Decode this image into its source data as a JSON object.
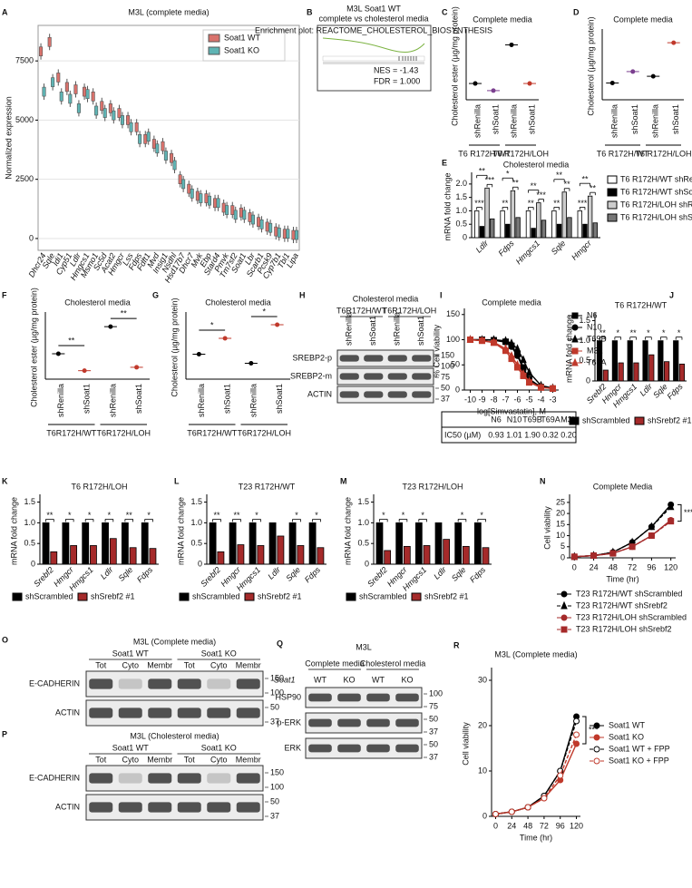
{
  "chart_data": [
    {
      "type": "box",
      "letter": "A",
      "title": "M3L (complete media)",
      "ylabel": "Normalized expression",
      "categories": [
        "Dhcr24",
        "Sqle",
        "Idi1",
        "Cyp51",
        "Ldlr",
        "Hmgcs1",
        "Msmo1",
        "Sc5d",
        "Acat2",
        "Hmgcr",
        "Lss",
        "Fdps",
        "Fdft1",
        "Mvd",
        "Insig1",
        "Nsdhl",
        "Hsd17b7",
        "Dhcr7",
        "Mvk",
        "Ebp",
        "Stard4",
        "Pmvk",
        "Tm7sf2",
        "Soat1",
        "Lbr",
        "Scarb1",
        "Pcsk9",
        "Cyp7b1",
        "Tbl1",
        "Lipa"
      ],
      "ylim": [
        -500,
        9000
      ],
      "yticks": [
        0,
        2500,
        5000,
        7500
      ],
      "grid": true,
      "legend": "top-right",
      "series": [
        {
          "name": "Soat1 WT",
          "color": "#d9726c",
          "values": [
            7900,
            8300,
            6800,
            6400,
            6300,
            6200,
            6000,
            5600,
            5500,
            5300,
            5000,
            4700,
            4200,
            4000,
            3900,
            3400,
            2500,
            2100,
            1800,
            1700,
            1500,
            1300,
            1200,
            1100,
            900,
            700,
            500,
            300,
            200,
            150
          ]
        },
        {
          "name": "Soat1 KO",
          "color": "#5fb4b4",
          "values": [
            6200,
            6600,
            6000,
            5900,
            5500,
            6100,
            5400,
            5300,
            5200,
            5000,
            4700,
            4200,
            4300,
            3800,
            3500,
            3100,
            2300,
            1900,
            1700,
            1600,
            1500,
            1200,
            1000,
            1000,
            800,
            600,
            450,
            250,
            200,
            150
          ]
        }
      ]
    },
    {
      "type": "dot",
      "letter": "C",
      "title": "Complete media",
      "ylabel": "Cholesterol ester (µg/mg protein)",
      "categories": [
        "shRenilla",
        "shSoat1",
        "shRenilla",
        "shSoat1"
      ],
      "values": [
        0.8,
        0.45,
        2.7,
        0.8
      ],
      "colors": [
        "#000000",
        "#7b3f8f",
        "#000000",
        "#c0392b"
      ],
      "groups": [
        "T6 R172H/WT",
        "T6 R172H/LOH"
      ],
      "ylim": [
        0,
        3.3
      ]
    },
    {
      "type": "dot",
      "letter": "D",
      "title": "Complete media",
      "ylabel": "Cholesterol (µg/mg protein)",
      "categories": [
        "shRenilla",
        "shSoat1",
        "shRenilla",
        "shSoat1"
      ],
      "values": [
        23.5,
        25.2,
        24.5,
        29.5
      ],
      "colors": [
        "#000000",
        "#7b3f8f",
        "#000000",
        "#c0392b"
      ],
      "groups": [
        "T6 R172H/WT",
        "T6 R172H/LOH"
      ],
      "ylim": [
        21,
        31
      ]
    },
    {
      "type": "bar",
      "letter": "E",
      "title": "Cholesterol media",
      "ylabel": "mRNA fold change",
      "categories": [
        "Ldlr",
        "Fdps",
        "Hmgcs1",
        "Sqle",
        "Hmgcr"
      ],
      "ylim": [
        0,
        2.3
      ],
      "yticks": [
        0,
        0.5,
        {
          "value": 1,
          "label": "1.0"
        },
        1.5,
        {
          "value": 2,
          "label": "2.0"
        }
      ],
      "legend": "right",
      "series": [
        {
          "name": "T6 R172H/WT shRenilla",
          "color": "#ffffff",
          "values": [
            1,
            1,
            1,
            1,
            1
          ]
        },
        {
          "name": "T6 R172H/WT shSoat1",
          "color": "#000000",
          "values": [
            0.42,
            0.5,
            0.35,
            0.5,
            0.5
          ]
        },
        {
          "name": "T6 R172H/LOH shRenilla",
          "color": "#cccccc",
          "values": [
            1.85,
            1.75,
            1.3,
            1.7,
            1.55
          ]
        },
        {
          "name": "T6 R172H/LOH shSoat1",
          "color": "#777777",
          "values": [
            0.7,
            0.75,
            0.65,
            0.75,
            0.55
          ]
        }
      ],
      "sig": [
        [
          "***",
          "**",
          "***"
        ],
        [
          "**",
          "*",
          "**"
        ],
        [
          "**",
          "**",
          "***"
        ],
        [
          "**",
          "**",
          "**"
        ],
        [
          "***",
          "**",
          "**"
        ]
      ]
    },
    {
      "type": "dot",
      "letter": "F",
      "title": "Cholesterol media",
      "ylabel": "Cholesterol ester (µg/mg protein)",
      "categories": [
        "shRenilla",
        "shSoat1",
        "shRenilla",
        "shSoat1"
      ],
      "values": [
        3.0,
        1.0,
        6.2,
        1.4
      ],
      "colors": [
        "#000000",
        "#c0392b",
        "#000000",
        "#c0392b"
      ],
      "groups": [
        "T6R172H/WT",
        "T6R172H/LOH"
      ],
      "group_sig": [
        "**",
        "**"
      ],
      "ylim": [
        0,
        7.5
      ]
    },
    {
      "type": "dot",
      "letter": "G",
      "title": "Cholesterol media",
      "ylabel": "Cholesterol (µg/mg protein)",
      "categories": [
        "shRenilla",
        "shSoat1",
        "shRenilla",
        "shSoat1"
      ],
      "values": [
        27.5,
        31,
        25.5,
        34
      ],
      "colors": [
        "#000000",
        "#c0392b",
        "#000000",
        "#c0392b"
      ],
      "groups": [
        "T6R172H/WT",
        "T6R172H/LOH"
      ],
      "group_sig": [
        "*",
        "*"
      ],
      "ylim": [
        22,
        36
      ]
    },
    {
      "type": "line",
      "letter": "I",
      "title": "Complete media",
      "xlabel": "log[Simvastatin], M",
      "ylabel": "% Cell viability",
      "x": [
        -10,
        -9,
        -8,
        -7,
        -6.5,
        -6,
        -5.5,
        -5,
        -4,
        -3
      ],
      "xlim": [
        -10.5,
        -2.5
      ],
      "xticks": [
        -10,
        -9,
        -8,
        -7,
        -6,
        -5,
        -4,
        -3
      ],
      "ylim": [
        0,
        155
      ],
      "yticks": [
        0,
        50,
        100,
        150
      ],
      "legend": "right",
      "series": [
        {
          "name": "N6",
          "color": "#000000",
          "marker": "square",
          "values": [
            100,
            100,
            99,
            96,
            88,
            72,
            45,
            22,
            6,
            3
          ]
        },
        {
          "name": "N10",
          "color": "#000000",
          "marker": "circle",
          "values": [
            100,
            100,
            99,
            95,
            86,
            68,
            42,
            20,
            6,
            3
          ]
        },
        {
          "name": "T69B",
          "color": "#000000",
          "marker": "triangle",
          "values": [
            100,
            100,
            100,
            98,
            93,
            82,
            60,
            35,
            9,
            4
          ]
        },
        {
          "name": "M3L",
          "color": "#c0392b",
          "marker": "square",
          "values": [
            100,
            98,
            94,
            78,
            62,
            45,
            28,
            15,
            5,
            3
          ]
        },
        {
          "name": "T69A",
          "color": "#c0392b",
          "marker": "triangle",
          "values": [
            100,
            98,
            95,
            82,
            68,
            50,
            32,
            17,
            5,
            3
          ]
        }
      ],
      "table": {
        "header": "IC50 (µM)",
        "columns": [
          "N6",
          "N10",
          "T69B",
          "T69A",
          "M3L"
        ],
        "values": [
          "0.93",
          "1.01",
          "1.90",
          "0.32",
          "0.20"
        ]
      }
    },
    {
      "type": "bar",
      "letter": "J",
      "title": "T6 R172H/WT",
      "ylabel": "mRNA fold change",
      "categories": [
        "Srebf2",
        "Hmgcr",
        "Hmgcs1",
        "Ldlr",
        "Sqle",
        "Fdps"
      ],
      "ylim": [
        0,
        1.6
      ],
      "yticks": [
        0,
        0.5,
        {
          "value": 1,
          "label": "1.0"
        },
        1.5
      ],
      "legend": "bottom",
      "series": [
        {
          "name": "shScrambled",
          "color": "#000000",
          "values": [
            1,
            1,
            1,
            1,
            1,
            1
          ]
        },
        {
          "name": "shSrebf2 #1",
          "color": "#a52a2a",
          "values": [
            0.27,
            0.45,
            0.45,
            0.65,
            0.48,
            0.42
          ]
        }
      ],
      "sig": [
        "**",
        "*",
        "**",
        "*",
        "*",
        "*"
      ]
    },
    {
      "type": "bar",
      "letter": "K",
      "title": "T6 R172H/LOH",
      "ylabel": "mRNA fold change",
      "categories": [
        "Srebf2",
        "Hmgcr",
        "Hmgcs1",
        "Ldlr",
        "Sqle",
        "Fdps"
      ],
      "ylim": [
        0,
        1.6
      ],
      "yticks": [
        0,
        0.5,
        {
          "value": 1,
          "label": "1.0"
        },
        1.5
      ],
      "legend": "bottom",
      "series": [
        {
          "name": "shScrambled",
          "color": "#000000",
          "values": [
            1,
            1,
            1,
            1,
            1,
            1
          ]
        },
        {
          "name": "shSrebf2 #1",
          "color": "#a52a2a",
          "values": [
            0.3,
            0.45,
            0.45,
            0.62,
            0.4,
            0.38
          ]
        }
      ],
      "sig": [
        "**",
        "*",
        "*",
        "*",
        "**",
        "*"
      ]
    },
    {
      "type": "bar",
      "letter": "L",
      "title": "T23 R172H/WT",
      "ylabel": "mRNA fold change",
      "categories": [
        "Srebf2",
        "Hmgcr",
        "Hmgcs1",
        "Ldlr",
        "Sqle",
        "Fdps"
      ],
      "ylim": [
        0,
        1.6
      ],
      "yticks": [
        0,
        0.5,
        {
          "value": 1,
          "label": "1.0"
        },
        1.5
      ],
      "legend": "bottom",
      "series": [
        {
          "name": "shScrambled",
          "color": "#000000",
          "values": [
            1,
            1,
            1,
            1,
            1,
            1
          ]
        },
        {
          "name": "shSrebf2 #1",
          "color": "#a52a2a",
          "values": [
            0.3,
            0.47,
            0.45,
            0.68,
            0.45,
            0.4
          ]
        }
      ],
      "sig": [
        "**",
        "**",
        "*",
        null,
        "*",
        "*"
      ]
    },
    {
      "type": "bar",
      "letter": "M",
      "title": "T23 R172H/LOH",
      "ylabel": "mRNA fold change",
      "categories": [
        "Srebf2",
        "Hmgcr",
        "Hmgcs1",
        "Ldlr",
        "Sqle",
        "Fdps"
      ],
      "ylim": [
        0,
        1.6
      ],
      "yticks": [
        0,
        0.5,
        {
          "value": 1,
          "label": "1.0"
        },
        1.5
      ],
      "legend": "bottom",
      "series": [
        {
          "name": "shScrambled",
          "color": "#000000",
          "values": [
            1,
            1,
            1,
            1,
            1,
            1
          ]
        },
        {
          "name": "shSrebf2 #1",
          "color": "#a52a2a",
          "values": [
            0.33,
            0.43,
            0.45,
            0.6,
            0.43,
            0.4
          ]
        }
      ],
      "sig": [
        "*",
        "*",
        "*",
        null,
        "*",
        "*"
      ]
    },
    {
      "type": "line",
      "letter": "N",
      "title": "Complete Media",
      "xlabel": "Time (hr)",
      "ylabel": "Cell viability",
      "x": [
        0,
        24,
        48,
        72,
        96,
        120
      ],
      "xlim": [
        -6,
        126
      ],
      "xticks": [
        0,
        24,
        48,
        72,
        96,
        120
      ],
      "ylim": [
        0,
        27
      ],
      "yticks": [
        0,
        5,
        10,
        15,
        20,
        25
      ],
      "legend": "bottom",
      "sig": "***",
      "series": [
        {
          "name": "T23 R172H/WT shScrambled",
          "color": "#000000",
          "marker": "circle",
          "dashed": false,
          "values": [
            0.5,
            1,
            2.5,
            7,
            14,
            24
          ]
        },
        {
          "name": "T23 R172H/WT shSrebf2",
          "color": "#000000",
          "marker": "triangle",
          "dashed": true,
          "values": [
            0.5,
            1,
            2.5,
            7,
            14,
            23
          ]
        },
        {
          "name": "T23 R172H/LOH shScrambled",
          "color": "#a52a2a",
          "marker": "circle",
          "dashed": false,
          "values": [
            0.5,
            1,
            2,
            5,
            10,
            17
          ]
        },
        {
          "name": "T23 R172H/LOH shSrebf2",
          "color": "#a52a2a",
          "marker": "square",
          "dashed": true,
          "values": [
            0.5,
            1,
            2,
            5,
            10,
            16.5
          ]
        }
      ]
    },
    {
      "type": "line",
      "letter": "R",
      "title": "M3L (Complete media)",
      "xlabel": "Time (hr)",
      "ylabel": "Cell viability",
      "x": [
        0,
        24,
        48,
        72,
        96,
        120
      ],
      "xlim": [
        -6,
        126
      ],
      "xticks": [
        0,
        24,
        48,
        72,
        96,
        120
      ],
      "ylim": [
        0,
        32
      ],
      "yticks": [
        0,
        10,
        20,
        30
      ],
      "legend": "right",
      "sig": "***",
      "series": [
        {
          "name": "Soat1 WT",
          "color": "#000000",
          "marker": "circle",
          "dashed": false,
          "values": [
            0.5,
            1,
            2,
            4.5,
            10,
            22
          ]
        },
        {
          "name": "Soat1 KO",
          "color": "#c0392b",
          "marker": "circle",
          "dashed": false,
          "values": [
            0.5,
            1,
            2,
            4,
            8,
            16
          ]
        },
        {
          "name": "Soat1 WT + FPP",
          "color": "#000000",
          "marker": "open-circle",
          "dashed": true,
          "values": [
            0.5,
            1,
            2,
            4.5,
            10,
            21
          ]
        },
        {
          "name": "Soat1 KO + FPP",
          "color": "#c0392b",
          "marker": "open-circle",
          "dashed": true,
          "values": [
            0.5,
            1,
            2,
            4,
            9,
            18
          ]
        }
      ]
    }
  ],
  "figures": [
    {
      "letter": "B",
      "title": "M3L Soat1 WT",
      "subtitle": "complete vs cholesterol media",
      "plot_title": "Enrichment plot: REACTOME_CHOLESTEROL_BIOSYNTHESIS",
      "annotations": [
        "NES = -1.43",
        "FDR = 1.000"
      ]
    },
    {
      "letter": "H",
      "title": "Cholesterol media",
      "groups": [
        "T6R172H/WT",
        "T6R172H/LOH"
      ],
      "lanes": [
        "shRenilla",
        "shSoat1",
        "shRenilla",
        "shSoat1"
      ],
      "rows": [
        "SREBP2-p",
        "SREBP2-m",
        "ACTIN"
      ],
      "markers": [
        150,
        100,
        75,
        50,
        37
      ]
    },
    {
      "letter": "O",
      "title": "M3L (Complete media)",
      "groups": [
        "Soat1 WT",
        "Soat1 KO"
      ],
      "lanes": [
        "Tot",
        "Cyto",
        "Membr",
        "Tot",
        "Cyto",
        "Membr"
      ],
      "rows": [
        "E-CADHERIN",
        "ACTIN"
      ],
      "markers": [
        150,
        100,
        50,
        37
      ]
    },
    {
      "letter": "P",
      "title": "M3L (Cholesterol media)",
      "groups": [
        "Soat1 WT",
        "Soat1 KO"
      ],
      "lanes": [
        "Tot",
        "Cyto",
        "Membr",
        "Tot",
        "Cyto",
        "Membr"
      ],
      "rows": [
        "E-CADHERIN",
        "ACTIN"
      ],
      "markers": [
        150,
        100,
        50,
        37
      ]
    },
    {
      "letter": "Q",
      "title": "M3L",
      "groups": [
        "Complete media",
        "Cholesterol media"
      ],
      "row_label": "Soat1",
      "lanes": [
        "WT",
        "KO",
        "WT",
        "KO"
      ],
      "rows": [
        "HSP90",
        "p-ERK",
        "ERK"
      ],
      "markers": [
        100,
        75,
        50,
        37,
        50,
        37
      ]
    }
  ]
}
